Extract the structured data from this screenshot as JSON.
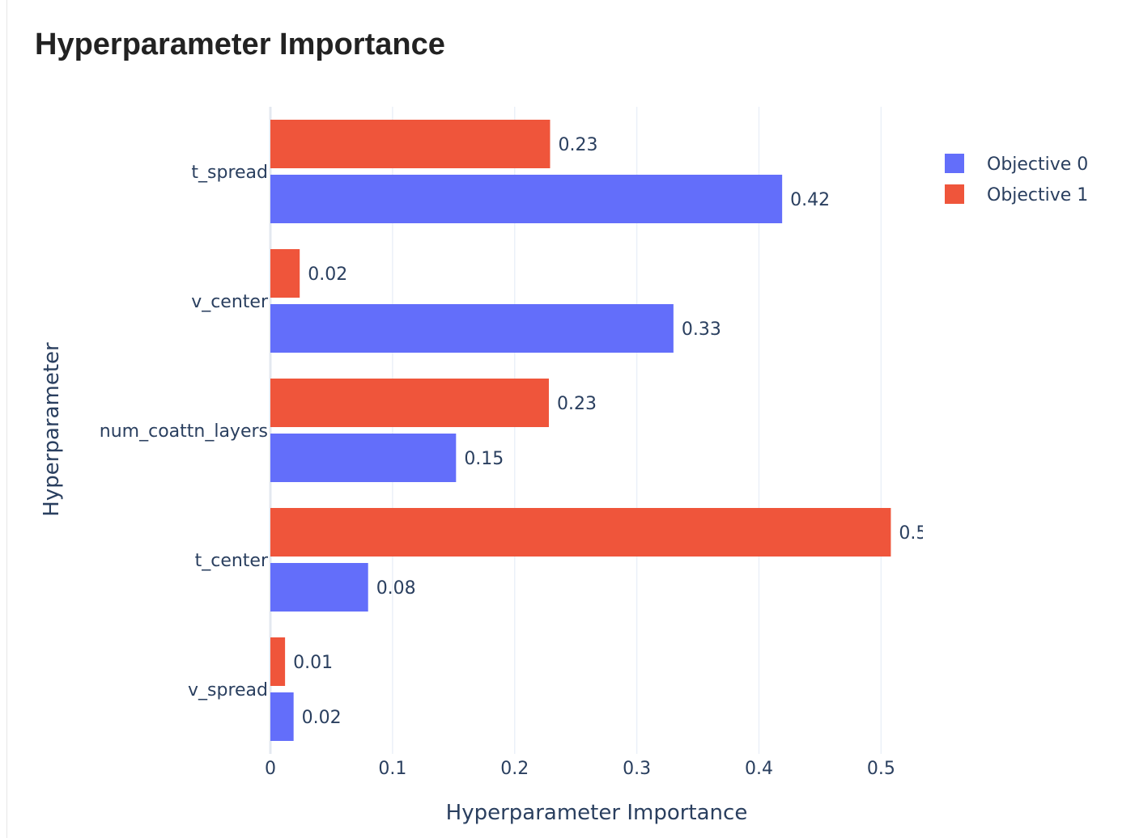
{
  "chart_data": {
    "type": "bar",
    "orientation": "horizontal",
    "title": "Hyperparameter Importance",
    "xlabel": "Hyperparameter Importance",
    "ylabel": "Hyperparameter",
    "categories": [
      "t_spread",
      "v_center",
      "num_coattn_layers",
      "t_center",
      "v_spread"
    ],
    "series": [
      {
        "name": "Objective 0",
        "color": "#636efa",
        "values": [
          0.419,
          0.33,
          0.152,
          0.08,
          0.019
        ],
        "labels": [
          "0.42",
          "0.33",
          "0.15",
          "0.08",
          "0.02"
        ]
      },
      {
        "name": "Objective 1",
        "color": "#ef553b",
        "values": [
          0.229,
          0.024,
          0.228,
          0.508,
          0.012
        ],
        "labels": [
          "0.23",
          "0.02",
          "0.23",
          "0.5",
          "0.01"
        ]
      }
    ],
    "xlim": [
      0,
      0.535
    ],
    "xticks": [
      0,
      0.1,
      0.2,
      0.3,
      0.4,
      0.5
    ],
    "xtick_labels": [
      "0",
      "0.1",
      "0.2",
      "0.3",
      "0.4",
      "0.5"
    ],
    "grid": true,
    "legend": "top-right"
  }
}
